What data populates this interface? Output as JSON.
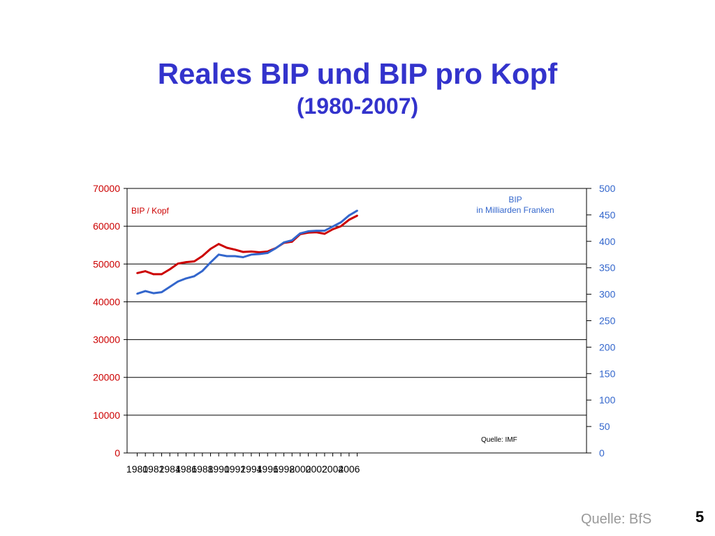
{
  "slide": {
    "title": "Reales BIP und BIP pro Kopf",
    "subtitle": "(1980-2007)",
    "footer_source": "Quelle: BfS",
    "page_number": "5"
  },
  "chart_data": {
    "type": "line",
    "x": [
      1980,
      1981,
      1982,
      1983,
      1984,
      1985,
      1986,
      1987,
      1988,
      1989,
      1990,
      1991,
      1992,
      1993,
      1994,
      1995,
      1996,
      1997,
      1998,
      1999,
      2000,
      2001,
      2002,
      2003,
      2004,
      2005,
      2006,
      2007
    ],
    "x_ticks": [
      "1980",
      "1982",
      "1984",
      "1986",
      "1988",
      "1990",
      "1992",
      "1994",
      "1996",
      "1998",
      "2000",
      "2002",
      "2004",
      "2006"
    ],
    "y_left": {
      "lim": [
        0,
        70000
      ],
      "ticks": [
        "0",
        "10000",
        "20000",
        "30000",
        "40000",
        "50000",
        "60000",
        "70000"
      ],
      "color": "#cc0000"
    },
    "y_right": {
      "lim": [
        0,
        500
      ],
      "ticks": [
        "0",
        "50",
        "100",
        "150",
        "200",
        "250",
        "300",
        "350",
        "400",
        "450",
        "500"
      ],
      "color": "#3366cc"
    },
    "grid": true,
    "series": [
      {
        "name": "BIP / Kopf",
        "axis": "left",
        "color": "#cc0000",
        "values": [
          47600,
          48100,
          47300,
          47300,
          48600,
          50100,
          50500,
          50700,
          52100,
          54000,
          55300,
          54300,
          53800,
          53200,
          53300,
          53100,
          53300,
          54200,
          55600,
          55900,
          57900,
          58300,
          58400,
          58000,
          59200,
          60000,
          61700,
          62800
        ]
      },
      {
        "name": "BIP\nin Milliarden Franken",
        "axis": "right",
        "color": "#3366cc",
        "values": [
          301,
          306,
          302,
          304,
          314,
          324,
          330,
          334,
          344,
          360,
          375,
          372,
          372,
          370,
          375,
          376,
          378,
          387,
          398,
          402,
          415,
          419,
          420,
          420,
          428,
          436,
          449,
          458
        ]
      }
    ],
    "annotation": "Quelle: IMF"
  }
}
